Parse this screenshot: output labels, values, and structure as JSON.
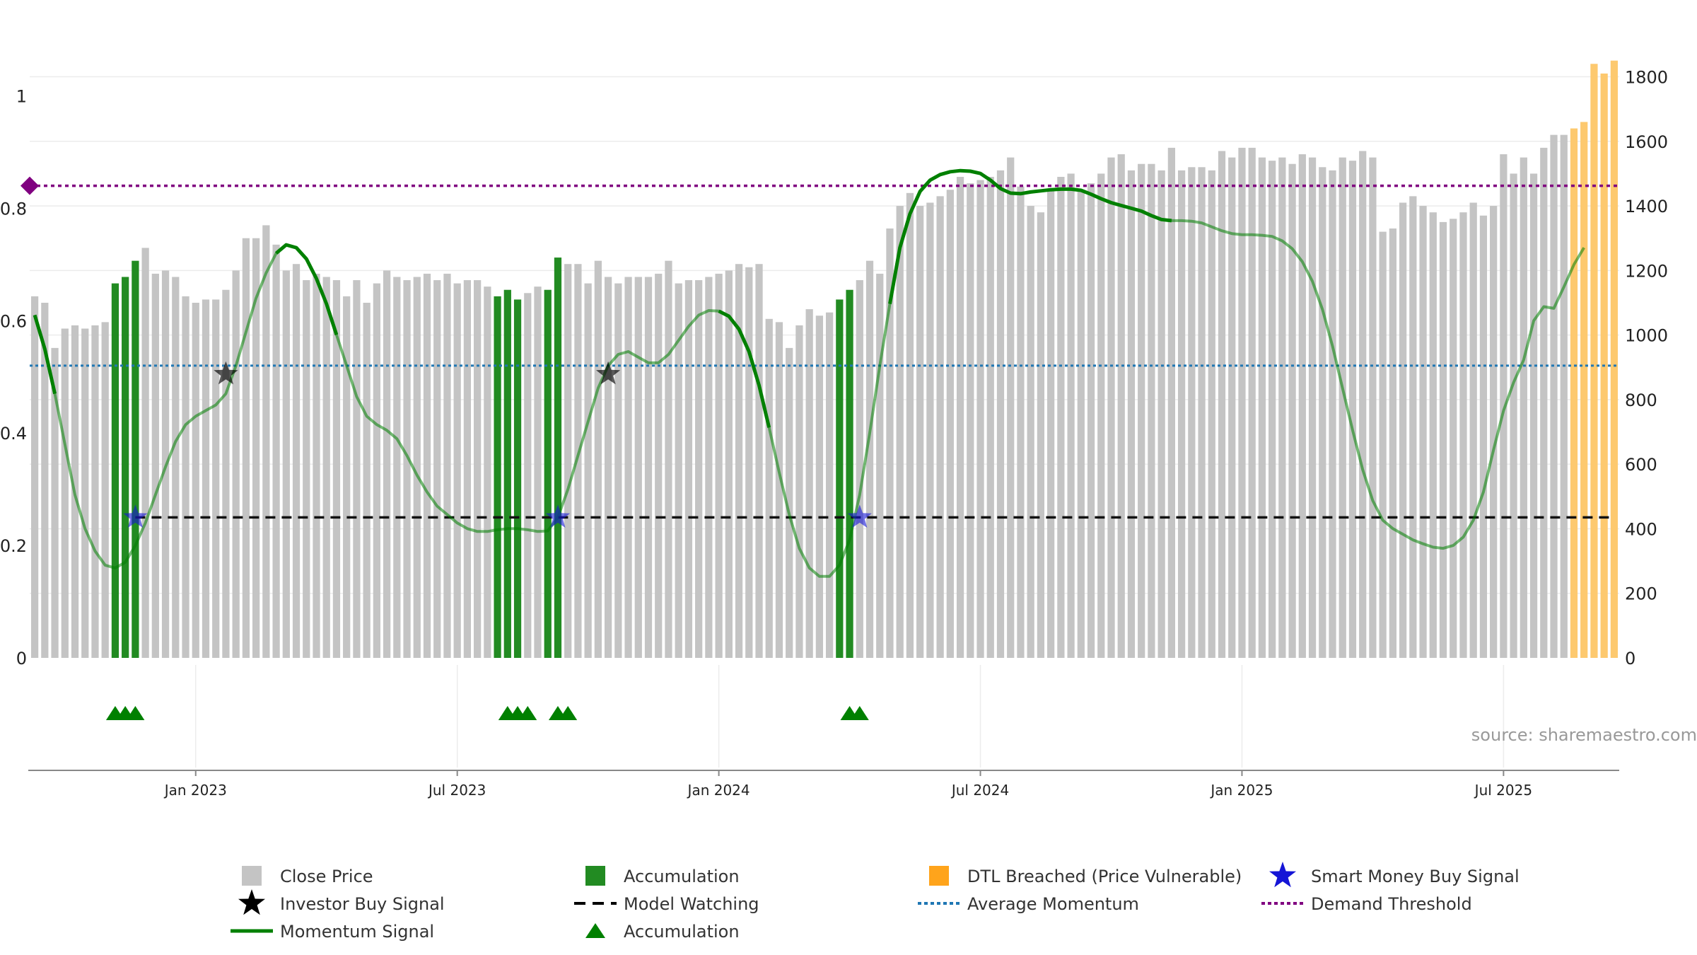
{
  "chart_data": {
    "type": "bar",
    "colors": {
      "price": "#c4c4c4",
      "accumulation": "#228b22",
      "dtl": "#fdc96f",
      "momentum": "#008000",
      "smart_money": "#1515d6",
      "investor": "#000000",
      "average": "#1f77b4",
      "demand": "#800080"
    },
    "left_axis": {
      "ylim": [
        0,
        1.08
      ],
      "ticks": [
        "0",
        "0.2",
        "0.4",
        "0.6",
        "0.8",
        "1"
      ],
      "tick_values": [
        0,
        0.2,
        0.4,
        0.6,
        0.8,
        1
      ]
    },
    "right_axis": {
      "ylim": [
        0,
        1880
      ],
      "ticks": [
        "0",
        "200",
        "400",
        "600",
        "800",
        "1000",
        "1200",
        "1400",
        "1600",
        "1800"
      ],
      "tick_values": [
        0,
        200,
        400,
        600,
        800,
        1000,
        1200,
        1400,
        1600,
        1800
      ]
    },
    "x_ticks": [
      {
        "label": "Jan 2023",
        "index": 16
      },
      {
        "label": "Jul 2023",
        "index": 42
      },
      {
        "label": "Jan 2024",
        "index": 68
      },
      {
        "label": "Jul 2024",
        "index": 94
      },
      {
        "label": "Jan 2025",
        "index": 120
      },
      {
        "label": "Jul 2025",
        "index": 146
      }
    ],
    "prices": [
      1120,
      1100,
      960,
      1020,
      1030,
      1020,
      1030,
      1040,
      1160,
      1180,
      1230,
      1270,
      1190,
      1200,
      1180,
      1120,
      1100,
      1110,
      1110,
      1140,
      1200,
      1300,
      1300,
      1340,
      1280,
      1200,
      1220,
      1170,
      1190,
      1180,
      1170,
      1120,
      1170,
      1100,
      1160,
      1200,
      1180,
      1170,
      1180,
      1190,
      1170,
      1190,
      1160,
      1170,
      1170,
      1150,
      1120,
      1140,
      1110,
      1130,
      1150,
      1140,
      1240,
      1220,
      1220,
      1160,
      1230,
      1180,
      1160,
      1180,
      1180,
      1180,
      1190,
      1230,
      1160,
      1170,
      1170,
      1180,
      1190,
      1200,
      1220,
      1210,
      1220,
      1050,
      1040,
      960,
      1030,
      1080,
      1060,
      1070,
      1110,
      1140,
      1170,
      1230,
      1190,
      1330,
      1400,
      1440,
      1400,
      1410,
      1430,
      1450,
      1490,
      1470,
      1480,
      1490,
      1510,
      1550,
      1460,
      1400,
      1380,
      1450,
      1490,
      1500,
      1450,
      1470,
      1500,
      1550,
      1560,
      1510,
      1530,
      1530,
      1510,
      1580,
      1510,
      1520,
      1520,
      1510,
      1570,
      1550,
      1580,
      1580,
      1550,
      1540,
      1550,
      1530,
      1560,
      1550,
      1520,
      1510,
      1550,
      1540,
      1570,
      1550,
      1320,
      1330,
      1410,
      1430,
      1400,
      1380,
      1350,
      1360,
      1380,
      1410,
      1370,
      1400,
      1560,
      1500,
      1550,
      1500,
      1580,
      1620,
      1620,
      1640,
      1660,
      1840,
      1810,
      1850
    ],
    "accumulation_bars": [
      8,
      9,
      10,
      46,
      47,
      48,
      51,
      52,
      80,
      81
    ],
    "dtl_bars": [
      153,
      154,
      155,
      156,
      157
    ],
    "momentum": [
      [
        0,
        0.61
      ],
      [
        1,
        0.55
      ],
      [
        2,
        0.47
      ],
      [
        3,
        0.38
      ],
      [
        4,
        0.29
      ],
      [
        5,
        0.23
      ],
      [
        6,
        0.19
      ],
      [
        7,
        0.165
      ],
      [
        8,
        0.16
      ],
      [
        9,
        0.17
      ],
      [
        10,
        0.2
      ],
      [
        11,
        0.24
      ],
      [
        12,
        0.29
      ],
      [
        13,
        0.34
      ],
      [
        14,
        0.385
      ],
      [
        15,
        0.415
      ],
      [
        16,
        0.43
      ],
      [
        17,
        0.44
      ],
      [
        18,
        0.45
      ],
      [
        19,
        0.47
      ],
      [
        20,
        0.52
      ],
      [
        21,
        0.58
      ],
      [
        22,
        0.64
      ],
      [
        23,
        0.685
      ],
      [
        24,
        0.72
      ],
      [
        25,
        0.735
      ],
      [
        26,
        0.73
      ],
      [
        27,
        0.71
      ],
      [
        28,
        0.675
      ],
      [
        29,
        0.63
      ],
      [
        30,
        0.575
      ],
      [
        31,
        0.52
      ],
      [
        32,
        0.465
      ],
      [
        33,
        0.43
      ],
      [
        34,
        0.415
      ],
      [
        35,
        0.405
      ],
      [
        36,
        0.39
      ],
      [
        37,
        0.36
      ],
      [
        38,
        0.325
      ],
      [
        39,
        0.295
      ],
      [
        40,
        0.27
      ],
      [
        41,
        0.255
      ],
      [
        42,
        0.24
      ],
      [
        43,
        0.23
      ],
      [
        44,
        0.225
      ],
      [
        45,
        0.225
      ],
      [
        46,
        0.228
      ],
      [
        47,
        0.23
      ],
      [
        48,
        0.23
      ],
      [
        49,
        0.228
      ],
      [
        50,
        0.225
      ],
      [
        51,
        0.226
      ],
      [
        52,
        0.25
      ],
      [
        53,
        0.3
      ],
      [
        54,
        0.36
      ],
      [
        55,
        0.42
      ],
      [
        56,
        0.48
      ],
      [
        57,
        0.52
      ],
      [
        58,
        0.54
      ],
      [
        59,
        0.545
      ],
      [
        60,
        0.535
      ],
      [
        61,
        0.525
      ],
      [
        62,
        0.525
      ],
      [
        63,
        0.54
      ],
      [
        64,
        0.565
      ],
      [
        65,
        0.59
      ],
      [
        66,
        0.61
      ],
      [
        67,
        0.618
      ],
      [
        68,
        0.617
      ],
      [
        69,
        0.608
      ],
      [
        70,
        0.585
      ],
      [
        71,
        0.545
      ],
      [
        72,
        0.485
      ],
      [
        73,
        0.41
      ],
      [
        74,
        0.33
      ],
      [
        75,
        0.255
      ],
      [
        76,
        0.195
      ],
      [
        77,
        0.16
      ],
      [
        78,
        0.145
      ],
      [
        79,
        0.145
      ],
      [
        80,
        0.165
      ],
      [
        81,
        0.21
      ],
      [
        82,
        0.29
      ],
      [
        83,
        0.4
      ],
      [
        84,
        0.52
      ],
      [
        85,
        0.63
      ],
      [
        86,
        0.73
      ],
      [
        87,
        0.79
      ],
      [
        88,
        0.83
      ],
      [
        89,
        0.85
      ],
      [
        90,
        0.86
      ],
      [
        91,
        0.865
      ],
      [
        92,
        0.867
      ],
      [
        93,
        0.866
      ],
      [
        94,
        0.862
      ],
      [
        95,
        0.85
      ],
      [
        96,
        0.835
      ],
      [
        97,
        0.827
      ],
      [
        98,
        0.826
      ],
      [
        99,
        0.829
      ],
      [
        100,
        0.831
      ],
      [
        101,
        0.833
      ],
      [
        102,
        0.834
      ],
      [
        103,
        0.834
      ],
      [
        104,
        0.832
      ],
      [
        105,
        0.825
      ],
      [
        106,
        0.817
      ],
      [
        107,
        0.81
      ],
      [
        108,
        0.805
      ],
      [
        109,
        0.8
      ],
      [
        110,
        0.795
      ],
      [
        111,
        0.787
      ],
      [
        112,
        0.78
      ],
      [
        113,
        0.778
      ],
      [
        114,
        0.778
      ],
      [
        115,
        0.777
      ],
      [
        116,
        0.774
      ],
      [
        117,
        0.767
      ],
      [
        118,
        0.76
      ],
      [
        119,
        0.755
      ],
      [
        120,
        0.753
      ],
      [
        121,
        0.753
      ],
      [
        122,
        0.752
      ],
      [
        123,
        0.75
      ],
      [
        124,
        0.742
      ],
      [
        125,
        0.728
      ],
      [
        126,
        0.705
      ],
      [
        127,
        0.67
      ],
      [
        128,
        0.62
      ],
      [
        129,
        0.555
      ],
      [
        130,
        0.48
      ],
      [
        131,
        0.405
      ],
      [
        132,
        0.335
      ],
      [
        133,
        0.28
      ],
      [
        134,
        0.245
      ],
      [
        135,
        0.23
      ],
      [
        136,
        0.22
      ],
      [
        137,
        0.21
      ],
      [
        138,
        0.203
      ],
      [
        139,
        0.197
      ],
      [
        140,
        0.195
      ],
      [
        141,
        0.2
      ],
      [
        142,
        0.215
      ],
      [
        143,
        0.245
      ],
      [
        144,
        0.295
      ],
      [
        145,
        0.37
      ],
      [
        146,
        0.44
      ],
      [
        147,
        0.49
      ],
      [
        148,
        0.53
      ],
      [
        149,
        0.6
      ],
      [
        150,
        0.625
      ],
      [
        151,
        0.622
      ],
      [
        152,
        0.66
      ],
      [
        153,
        0.7
      ],
      [
        154,
        0.73
      ]
    ],
    "momentum_bold_ranges": [
      [
        0,
        2
      ],
      [
        24,
        30
      ],
      [
        68,
        73
      ],
      [
        85,
        113
      ]
    ],
    "average_momentum": 0.52,
    "demand_threshold": 0.84,
    "model_watching": {
      "level": 0.25,
      "from_index": 10,
      "to_index": 157
    },
    "smart_money_signals": [
      {
        "index": 10,
        "value": 0.25
      },
      {
        "index": 52,
        "value": 0.25
      },
      {
        "index": 82,
        "value": 0.25
      }
    ],
    "investor_signals": [
      {
        "index": 19,
        "value": 0.505
      },
      {
        "index": 57,
        "value": 0.505
      }
    ],
    "accumulation_markers": [
      8,
      9,
      10,
      47,
      48,
      49,
      52,
      53,
      81,
      82
    ],
    "source_label": "source: sharemaestro.com",
    "legend": [
      {
        "key": "price",
        "label": "Close Price"
      },
      {
        "key": "accumulation_bar",
        "label": "Accumulation"
      },
      {
        "key": "dtl",
        "label": "DTL Breached (Price Vulnerable)"
      },
      {
        "key": "smart_money",
        "label": "Smart Money Buy Signal"
      },
      {
        "key": "investor",
        "label": "Investor Buy Signal"
      },
      {
        "key": "model_watching",
        "label": "Model Watching"
      },
      {
        "key": "average",
        "label": "Average Momentum"
      },
      {
        "key": "demand",
        "label": "Demand Threshold"
      },
      {
        "key": "momentum",
        "label": "Momentum Signal"
      },
      {
        "key": "accumulation_marker",
        "label": "Accumulation"
      }
    ]
  }
}
